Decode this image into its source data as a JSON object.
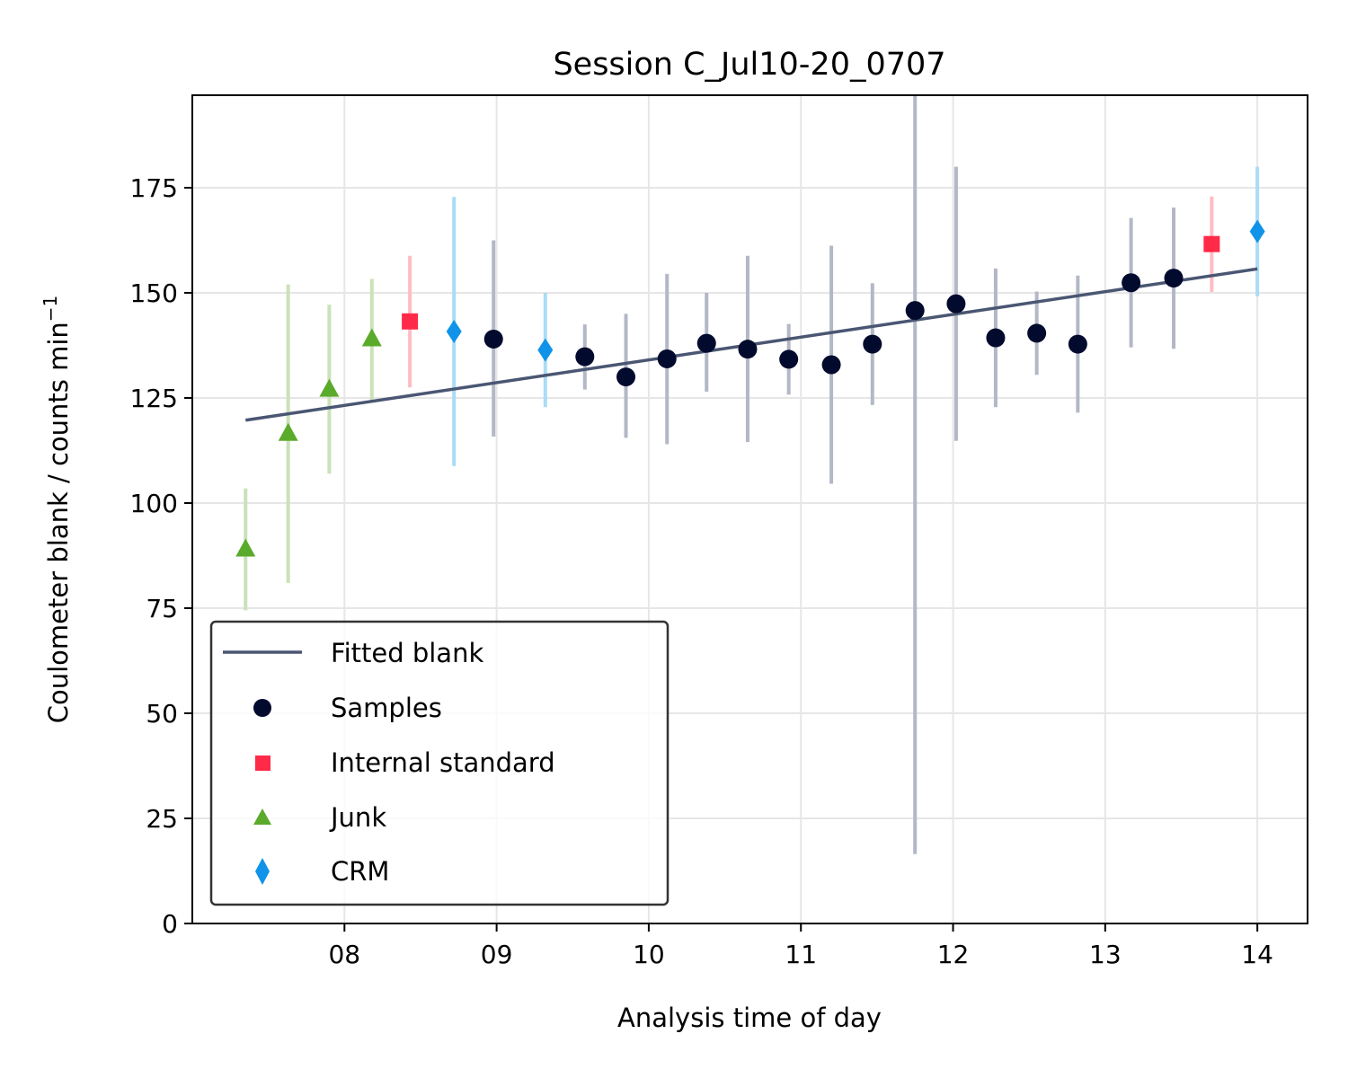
{
  "chart_data": {
    "type": "scatter",
    "title": "Session C_Jul10-20_0707",
    "xlabel": "Analysis time of day",
    "ylabel": "Coulometer blank / counts min",
    "ylabel_superscript": "−1",
    "xlim": [
      7.0,
      14.33
    ],
    "ylim": [
      0,
      197
    ],
    "x_ticks": [
      8,
      9,
      10,
      11,
      12,
      13,
      14
    ],
    "x_tick_labels": [
      "08",
      "09",
      "10",
      "11",
      "12",
      "13",
      "14"
    ],
    "y_ticks": [
      0,
      25,
      50,
      75,
      100,
      125,
      150,
      175
    ],
    "y_tick_labels": [
      "0",
      "25",
      "50",
      "75",
      "100",
      "125",
      "150",
      "175"
    ],
    "grid": true,
    "legend_position": "lower-left",
    "fit_line": {
      "name": "Fitted blank",
      "color": "#4a5672",
      "x": [
        7.35,
        14.0
      ],
      "y": [
        119.7,
        155.7
      ]
    },
    "series": [
      {
        "name": "Samples",
        "marker": "circle",
        "color": "#020b2e",
        "errorbar_color": "#b3b8c6",
        "points": [
          {
            "x": 8.98,
            "y": 139.0,
            "lo": 115.8,
            "hi": 162.5
          },
          {
            "x": 9.58,
            "y": 134.8,
            "lo": 127.0,
            "hi": 142.5
          },
          {
            "x": 9.85,
            "y": 130.0,
            "lo": 115.5,
            "hi": 145.0
          },
          {
            "x": 10.12,
            "y": 134.3,
            "lo": 114.0,
            "hi": 154.5
          },
          {
            "x": 10.38,
            "y": 138.0,
            "lo": 126.5,
            "hi": 150.0
          },
          {
            "x": 10.65,
            "y": 136.6,
            "lo": 114.5,
            "hi": 158.8
          },
          {
            "x": 10.92,
            "y": 134.2,
            "lo": 125.8,
            "hi": 142.6
          },
          {
            "x": 11.2,
            "y": 132.9,
            "lo": 104.6,
            "hi": 161.2
          },
          {
            "x": 11.47,
            "y": 137.8,
            "lo": 123.3,
            "hi": 152.3
          },
          {
            "x": 11.75,
            "y": 145.8,
            "lo": 16.5,
            "hi": 197.0
          },
          {
            "x": 12.02,
            "y": 147.4,
            "lo": 114.8,
            "hi": 180.0
          },
          {
            "x": 12.28,
            "y": 139.3,
            "lo": 122.8,
            "hi": 155.8
          },
          {
            "x": 12.55,
            "y": 140.4,
            "lo": 130.5,
            "hi": 150.3
          },
          {
            "x": 12.82,
            "y": 137.8,
            "lo": 121.5,
            "hi": 154.1
          },
          {
            "x": 13.17,
            "y": 152.4,
            "lo": 137.0,
            "hi": 167.8
          },
          {
            "x": 13.45,
            "y": 153.5,
            "lo": 136.7,
            "hi": 170.3
          }
        ]
      },
      {
        "name": "Internal standard",
        "marker": "square",
        "color": "#ff2a48",
        "errorbar_color": "#ffbcc5",
        "points": [
          {
            "x": 8.43,
            "y": 143.2,
            "lo": 127.5,
            "hi": 158.8
          },
          {
            "x": 13.7,
            "y": 161.6,
            "lo": 150.2,
            "hi": 172.9
          }
        ]
      },
      {
        "name": "Junk",
        "marker": "triangle",
        "color": "#5aaa2b",
        "errorbar_color": "#c9e2b8",
        "points": [
          {
            "x": 7.35,
            "y": 89.0,
            "lo": 74.5,
            "hi": 103.5
          },
          {
            "x": 7.63,
            "y": 116.5,
            "lo": 81.0,
            "hi": 152.0
          },
          {
            "x": 7.9,
            "y": 127.0,
            "lo": 107.0,
            "hi": 147.2
          },
          {
            "x": 8.18,
            "y": 139.0,
            "lo": 124.5,
            "hi": 153.3
          }
        ]
      },
      {
        "name": "CRM",
        "marker": "diamond",
        "color": "#1093e8",
        "errorbar_color": "#aadcf6",
        "points": [
          {
            "x": 8.72,
            "y": 140.8,
            "lo": 108.8,
            "hi": 172.8
          },
          {
            "x": 9.32,
            "y": 136.4,
            "lo": 122.8,
            "hi": 150.0
          },
          {
            "x": 14.0,
            "y": 164.6,
            "lo": 149.2,
            "hi": 180.0
          }
        ]
      }
    ]
  }
}
